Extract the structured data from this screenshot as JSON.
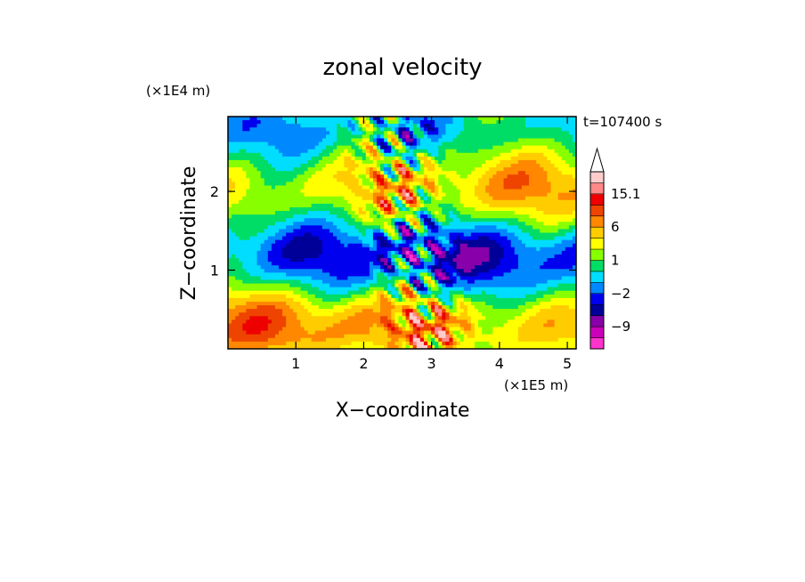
{
  "chart_data": {
    "type": "heatmap",
    "title": "zonal velocity",
    "xlabel": "X−coordinate",
    "ylabel": "Z−coordinate",
    "x_scale_label": "(×1E5 m)",
    "y_scale_label": "(×1E4 m)",
    "annotation": "t=107400 s",
    "xlim": [
      0,
      5.13
    ],
    "ylim": [
      0,
      2.95
    ],
    "x_ticks": [
      {
        "value": 1,
        "label": "1"
      },
      {
        "value": 2,
        "label": "2"
      },
      {
        "value": 3,
        "label": "3"
      },
      {
        "value": 4,
        "label": "4"
      },
      {
        "value": 5,
        "label": "5"
      }
    ],
    "y_ticks": [
      {
        "value": 1,
        "label": "1"
      },
      {
        "value": 2,
        "label": "2"
      }
    ],
    "colorbar": {
      "levels": [
        {
          "color": "#ff33cc",
          "label": ""
        },
        {
          "color": "#cc00bb",
          "label": ""
        },
        {
          "color": "#8800aa",
          "label": "−9"
        },
        {
          "color": "#000099",
          "label": ""
        },
        {
          "color": "#0000ee",
          "label": ""
        },
        {
          "color": "#0088ff",
          "label": "−2"
        },
        {
          "color": "#00ddff",
          "label": ""
        },
        {
          "color": "#00dd66",
          "label": ""
        },
        {
          "color": "#88ff00",
          "label": "1"
        },
        {
          "color": "#ffff00",
          "label": ""
        },
        {
          "color": "#ffcc00",
          "label": ""
        },
        {
          "color": "#ff8800",
          "label": "6"
        },
        {
          "color": "#ee4400",
          "label": ""
        },
        {
          "color": "#ee0000",
          "label": ""
        },
        {
          "color": "#ff8888",
          "label": "15.1"
        },
        {
          "color": "#ffcccc",
          "label": ""
        }
      ]
    }
  }
}
